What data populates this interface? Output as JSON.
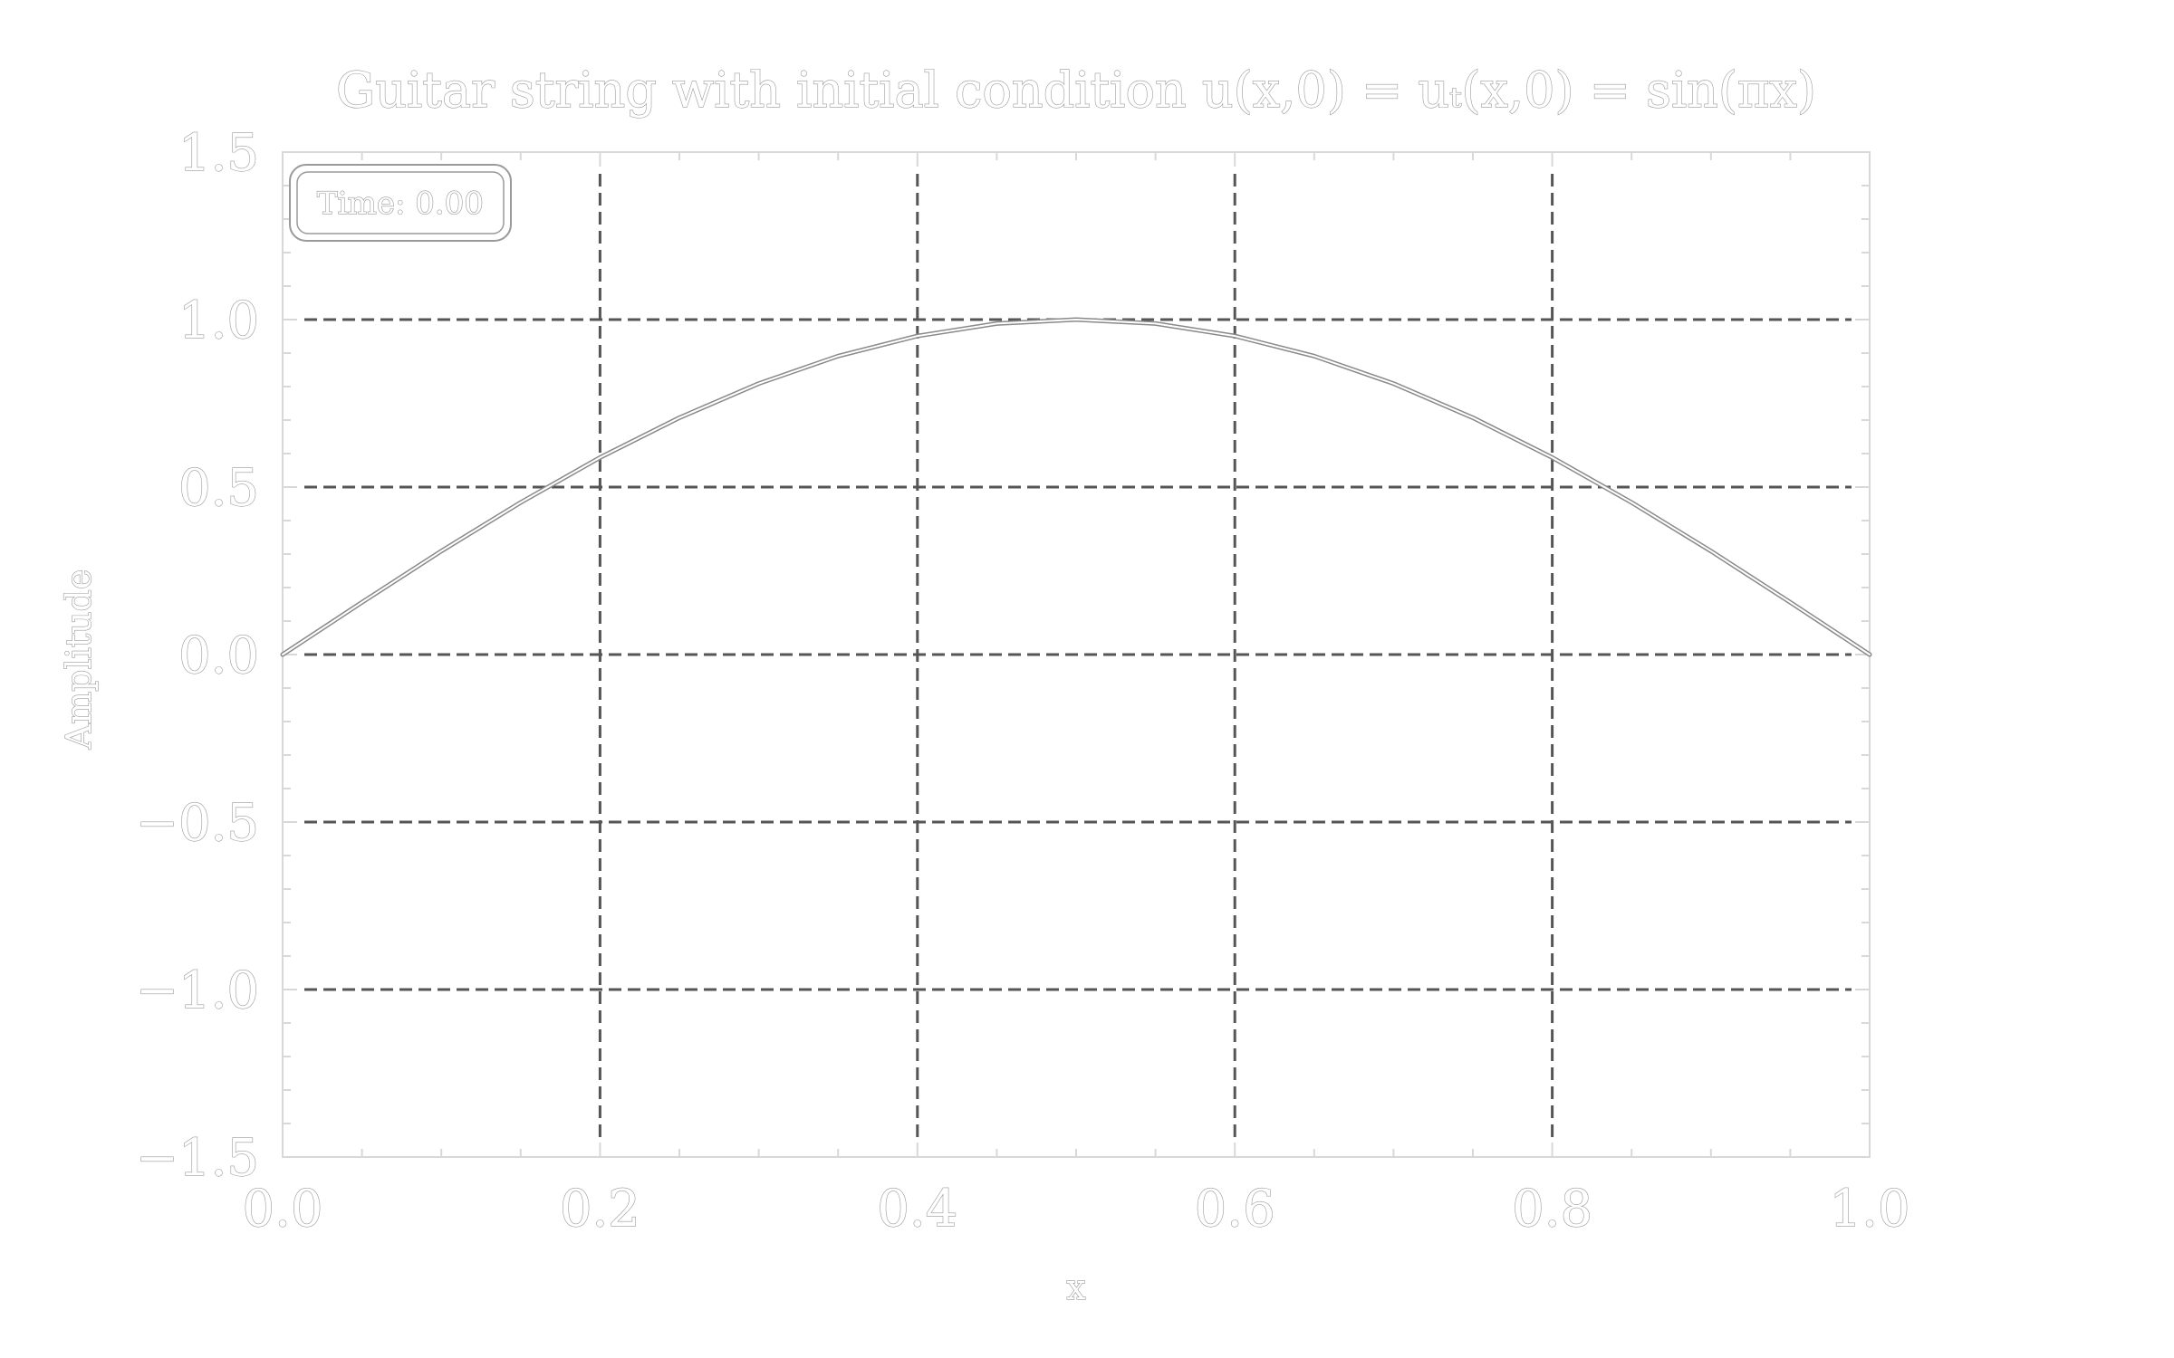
{
  "chart_data": {
    "type": "line",
    "title": "Guitar string with initial condition u(x,0) = uₜ(x,0) = sin(πx)",
    "xlabel": "x",
    "ylabel": "Amplitude",
    "xlim": [
      0.0,
      1.0
    ],
    "ylim": [
      -1.5,
      1.5
    ],
    "x_ticks": [
      "0.0",
      "0.2",
      "0.4",
      "0.6",
      "0.8",
      "1.0"
    ],
    "x_tick_values": [
      0.0,
      0.2,
      0.4,
      0.6,
      0.8,
      1.0
    ],
    "y_ticks": [
      "−1.5",
      "−1.0",
      "−0.5",
      "0.0",
      "0.5",
      "1.0",
      "1.5"
    ],
    "y_tick_values": [
      -1.5,
      -1.0,
      -0.5,
      0.0,
      0.5,
      1.0,
      1.5
    ],
    "grid": true,
    "series": [
      {
        "x": [
          0.0,
          0.05,
          0.1,
          0.15,
          0.2,
          0.25,
          0.3,
          0.35,
          0.4,
          0.45,
          0.5,
          0.55,
          0.6,
          0.65,
          0.7,
          0.75,
          0.8,
          0.85,
          0.9,
          0.95,
          1.0
        ],
        "values": [
          0.0,
          0.156,
          0.309,
          0.454,
          0.588,
          0.707,
          0.809,
          0.891,
          0.951,
          0.988,
          1.0,
          0.988,
          0.951,
          0.891,
          0.809,
          0.707,
          0.588,
          0.454,
          0.309,
          0.156,
          0.0
        ]
      }
    ],
    "annotation": "Time: 0.00",
    "annotation_position": "top-left"
  }
}
